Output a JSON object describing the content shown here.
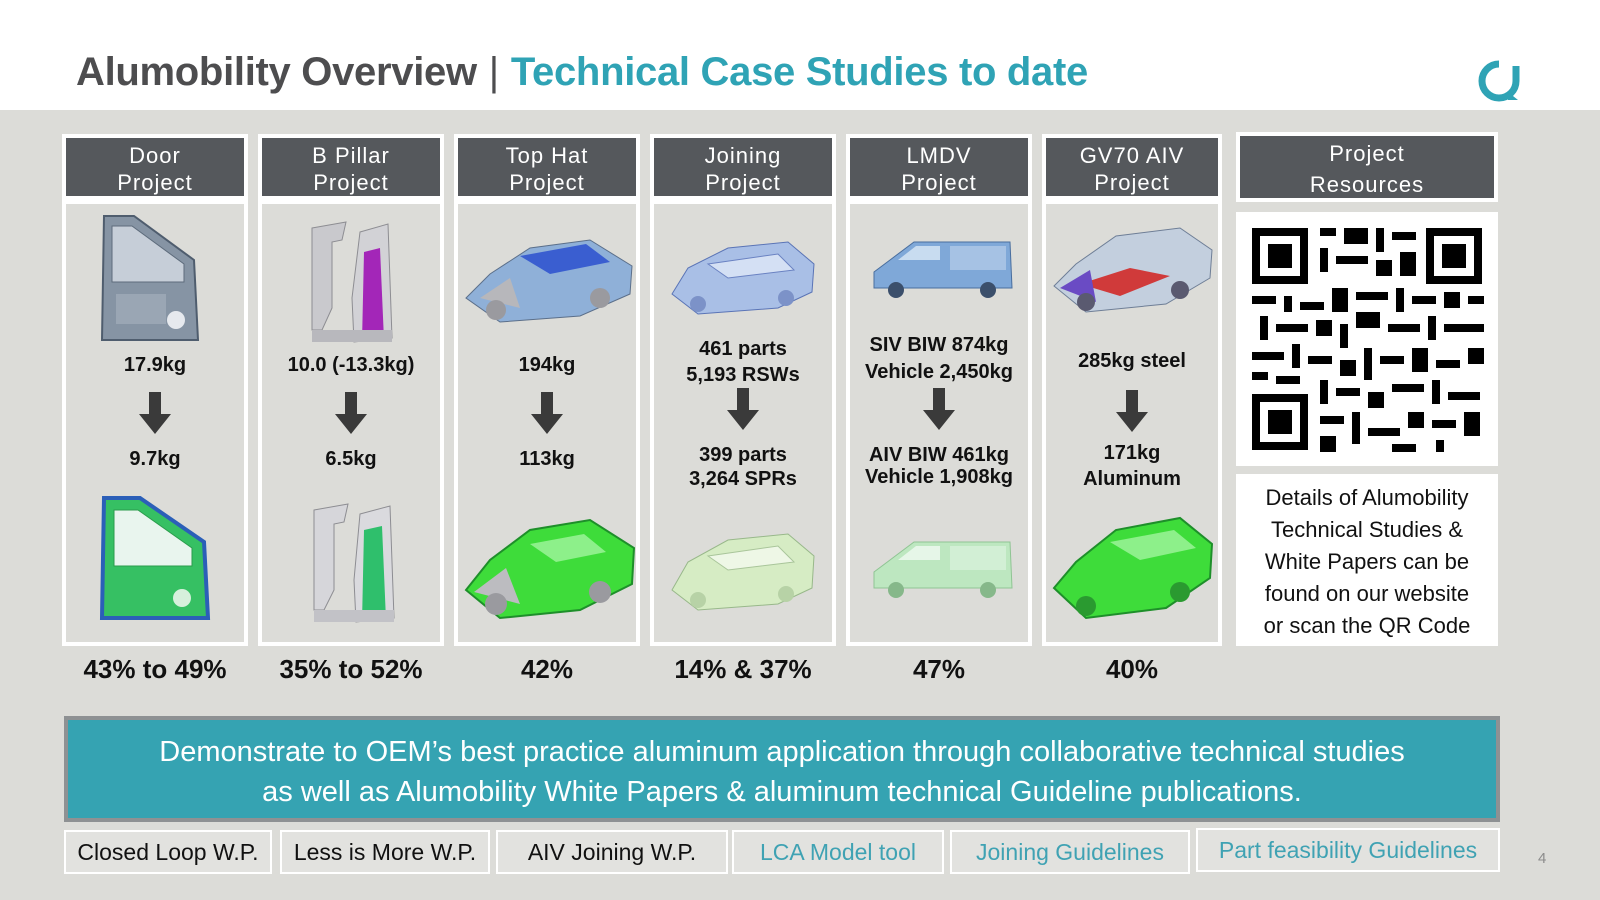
{
  "title": {
    "main": "Alumobility Overview",
    "separator": "|",
    "sub": "Technical Case Studies to date"
  },
  "projects": [
    {
      "header_line1": "Door",
      "header_line2": "Project",
      "before": "17.9kg",
      "after": "9.7kg",
      "reduction": "43% to 49%"
    },
    {
      "header_line1": "B Pillar",
      "header_line2": "Project",
      "before": "10.0 (-13.3kg)",
      "after": "6.5kg",
      "reduction": "35% to 52%"
    },
    {
      "header_line1": "Top Hat",
      "header_line2": "Project",
      "before": "194kg",
      "after": "113kg",
      "reduction": "42%"
    },
    {
      "header_line1": "Joining",
      "header_line2": "Project",
      "before_line1": "461 parts",
      "before_line2": "5,193 RSWs",
      "after_line1": "399 parts",
      "after_line2": "3,264 SPRs",
      "reduction": "14% & 37%"
    },
    {
      "header_line1": "LMDV",
      "header_line2": "Project",
      "before_line1": "SIV BIW 874kg",
      "before_line2": "Vehicle 2,450kg",
      "after_line1": "AIV BIW 461kg",
      "after_line2": "Vehicle 1,908kg",
      "reduction": "47%"
    },
    {
      "header_line1": "GV70 AIV",
      "header_line2": "Project",
      "before": "285kg steel",
      "after_line1": "171kg",
      "after_line2": "Aluminum",
      "reduction": "40%"
    }
  ],
  "resources": {
    "header_line1": "Project",
    "header_line2": "Resources",
    "text_lines": [
      "Details of Alumobility",
      "Technical Studies &",
      "White Papers can be",
      "found on our website",
      "or scan the QR Code"
    ]
  },
  "banner": {
    "line1": "Demonstrate to OEM’s best practice aluminum application through collaborative technical studies",
    "line2": "as well as Alumobility White Papers & aluminum technical Guideline publications."
  },
  "white_papers": [
    {
      "label": "Closed Loop W.P.",
      "link": false
    },
    {
      "label": "Less is More W.P.",
      "link": false
    },
    {
      "label": "AIV Joining W.P.",
      "link": false
    },
    {
      "label": "LCA Model tool",
      "link": true
    },
    {
      "label": "Joining Guidelines",
      "link": true
    },
    {
      "label": "Part feasibility Guidelines",
      "link": true
    }
  ],
  "page_number": "4",
  "colors": {
    "accent": "#2fa3b5",
    "title_gray": "#4d4d4f",
    "header_dark": "#55585c",
    "steel": "#7f8c9a",
    "aluminum_green": "#3ecf3a"
  }
}
